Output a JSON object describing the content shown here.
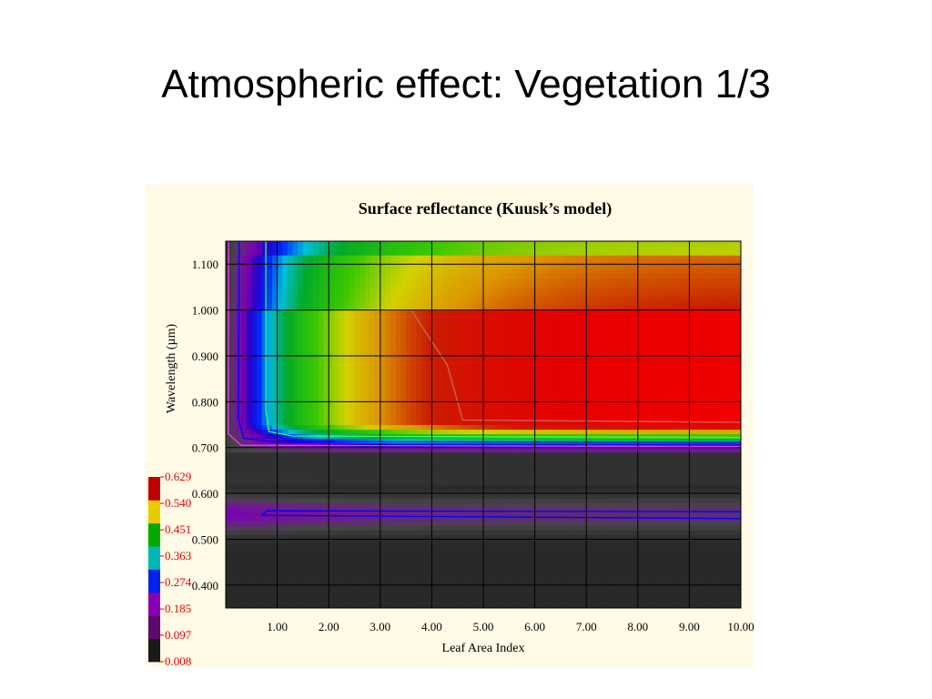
{
  "slide": {
    "title": "Atmospheric effect: Vegetation 1/3"
  },
  "colors": {
    "panel_background": "#fffbe6",
    "grid": "#000000",
    "contour_green": "#33ff66",
    "contour_magenta": "#ff33ff",
    "contour_blue": "#0000ff",
    "colorbar_label": "#e00000"
  },
  "chart_data": {
    "type": "heatmap",
    "title": "Surface reflectance (Kuusk’s model)",
    "xlabel": "Leaf Area Index",
    "ylabel": "Wavelength (µm)",
    "xlim": [
      0.0,
      10.0
    ],
    "ylim": [
      0.35,
      1.15
    ],
    "x_ticks": [
      1,
      2,
      3,
      4,
      5,
      6,
      7,
      8,
      9,
      10
    ],
    "x_tick_labels": [
      "1.00",
      "2.00",
      "3.00",
      "4.00",
      "5.00",
      "6.00",
      "7.00",
      "8.00",
      "9.00",
      "10.00"
    ],
    "y_ticks": [
      0.4,
      0.5,
      0.6,
      0.7,
      0.8,
      0.9,
      1.0,
      1.1
    ],
    "y_tick_labels": [
      "0.400",
      "0.500",
      "0.600",
      "0.700",
      "0.800",
      "0.900",
      "1.000",
      "1.100"
    ],
    "grid": true,
    "colorbar": {
      "placement": "bottom-left",
      "levels": [
        0.008,
        0.097,
        0.185,
        0.274,
        0.363,
        0.451,
        0.54,
        0.629
      ],
      "labels": [
        "0.008",
        "0.097",
        "0.185",
        "0.274",
        "0.363",
        "0.451",
        "0.540",
        "0.629"
      ],
      "colors": [
        "#1a1a1a",
        "#5a0a6a",
        "#8a00b0",
        "#0022ee",
        "#00b8b8",
        "#00aa00",
        "#e8cc00",
        "#c00000"
      ]
    }
  }
}
